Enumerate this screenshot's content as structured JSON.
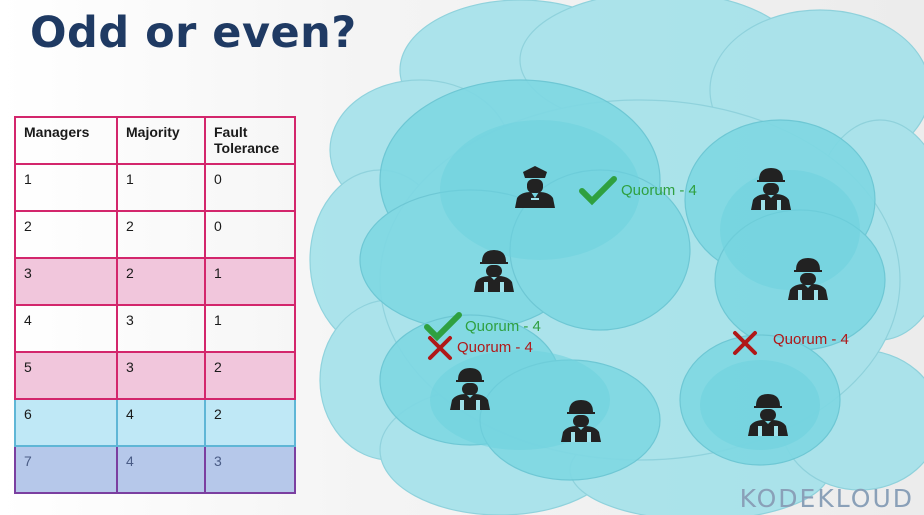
{
  "title": "Odd or even?",
  "table": {
    "headers": [
      "Managers",
      "Majority",
      "Fault\nTolerance"
    ],
    "rows": [
      {
        "managers": "1",
        "majority": "1",
        "fault": "0",
        "style": "plain"
      },
      {
        "managers": "2",
        "majority": "2",
        "fault": "0",
        "style": "plain"
      },
      {
        "managers": "3",
        "majority": "2",
        "fault": "1",
        "style": "pink"
      },
      {
        "managers": "4",
        "majority": "3",
        "fault": "1",
        "style": "plain"
      },
      {
        "managers": "5",
        "majority": "3",
        "fault": "2",
        "style": "pink"
      },
      {
        "managers": "6",
        "majority": "4",
        "fault": "2",
        "style": "blue"
      },
      {
        "managers": "7",
        "majority": "4",
        "fault": "3",
        "style": "purple"
      }
    ]
  },
  "labels": {
    "top_quorum": "Quorum - 4",
    "left_ok_quorum": "Quorum - 4",
    "left_fail_quorum": "Quorum - 4",
    "right_fail_quorum": "Quorum - 4"
  },
  "icons": {
    "leader": "police-officer-icon",
    "worker": "construction-worker-icon",
    "check": "check-icon",
    "cross": "cross-icon"
  },
  "colors": {
    "title": "#1f3a63",
    "table_border": "#d3266c",
    "pink_row": "#f1c6dc",
    "blue_row": "#bfe8f6",
    "purple_row": "#b6c8ea",
    "cloud": "#8fdce6",
    "check_green": "#2fa040",
    "cross_red": "#b01818"
  },
  "brand": {
    "logo_text": "KODEKLOUD"
  }
}
